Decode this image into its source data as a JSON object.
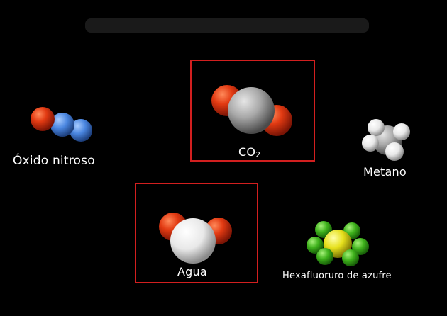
{
  "molecules": {
    "oxido_nitroso": {
      "label": "Óxido nitroso",
      "atoms": [
        "oxygen",
        "nitrogen",
        "nitrogen"
      ]
    },
    "co2": {
      "label_main": "CO",
      "label_sub": "2",
      "atoms": [
        "oxygen",
        "carbon",
        "oxygen"
      ],
      "highlighted": true
    },
    "metano": {
      "label": "Metano",
      "atoms": [
        "carbon",
        "hydrogen",
        "hydrogen",
        "hydrogen",
        "hydrogen"
      ]
    },
    "agua": {
      "label": "Agua",
      "atoms": [
        "oxygen",
        "hydrogen",
        "hydrogen"
      ],
      "highlighted": true
    },
    "hexafluoruro": {
      "label": "Hexafluoruro de azufre",
      "atoms": [
        "sulfur",
        "fluorine",
        "fluorine",
        "fluorine",
        "fluorine",
        "fluorine",
        "fluorine"
      ]
    }
  },
  "colors": {
    "background": "#000000",
    "highlight_frame": "#d21f1f",
    "oxygen": "#e23a12",
    "nitrogen": "#4a86e0",
    "carbon": "#9a9a9a",
    "hydrogen": "#f2f2f2",
    "sulfur": "#e6e01c",
    "fluorine": "#3fb21c"
  }
}
